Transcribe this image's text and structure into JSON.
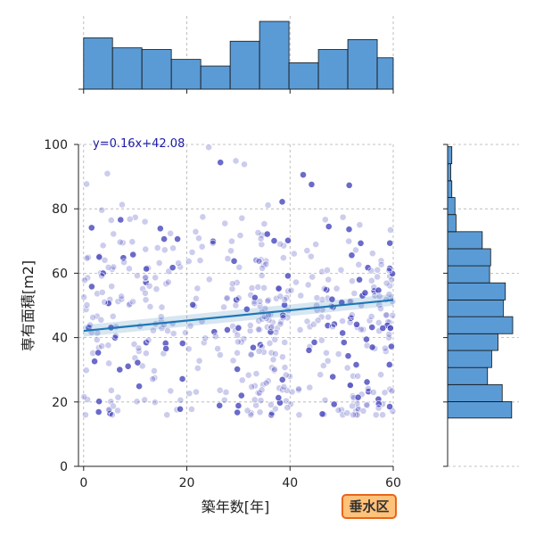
{
  "chart_data": {
    "type": "scatter",
    "xlabel": "築年数[年]",
    "ylabel": "専有面積[m2]",
    "xlim": [
      -1,
      60
    ],
    "ylim": [
      0,
      100
    ],
    "xticks": [
      0,
      20,
      40,
      60
    ],
    "yticks": [
      0,
      20,
      40,
      60,
      80,
      100
    ],
    "grid": true,
    "regression": {
      "slope": 0.16,
      "intercept": 42.08,
      "label": "y=0.16x+42.08"
    },
    "badge": "垂水区",
    "colors": {
      "points": "#3a3ab8",
      "line": "#1f77b4",
      "bars": "#5b9bd5",
      "badge_fill": "#ffc27a",
      "badge_border": "#e8651a"
    },
    "x_hist": {
      "bin_edges": [
        0,
        5.6,
        11.3,
        17.0,
        22.7,
        28.4,
        34.1,
        39.8,
        45.5,
        51.2,
        56.9,
        60
      ],
      "counts": [
        31,
        25,
        24,
        18,
        14,
        29,
        41,
        16,
        24,
        30,
        19
      ]
    },
    "y_hist": {
      "bin_edges": [
        15,
        20.1,
        25.4,
        30.7,
        36.0,
        41.2,
        46.5,
        51.7,
        57.0,
        62.3,
        67.6,
        72.9,
        78.2,
        83.5,
        88.7,
        94.0,
        99.3
      ],
      "counts": [
        61,
        52,
        38,
        42,
        48,
        62,
        53,
        55,
        40,
        41,
        33,
        8,
        7,
        4,
        3,
        4
      ]
    }
  }
}
